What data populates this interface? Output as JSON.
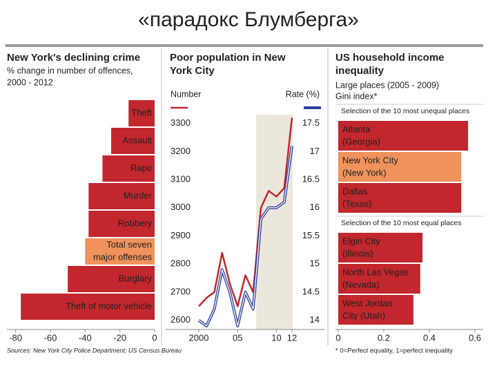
{
  "title": "«парадокс Блумберга»",
  "source": "Sources: New York City Police Department; US Census Bureau",
  "chart_data": [
    {
      "type": "hbar",
      "title": [
        "New York's declining crime"
      ],
      "subtitle": [
        "% change in number of offences,",
        "2000 - 2012"
      ],
      "categories": [
        "Theft",
        "Assault",
        "Rape",
        "Murder",
        "Robbery",
        [
          "Total seven",
          "major offenses"
        ],
        "Burglary",
        "Theft of motor vehicle"
      ],
      "values": [
        -15,
        -25,
        -30,
        -38,
        -38,
        -40,
        -50,
        -77
      ],
      "colors": [
        "#c1272d",
        "#c1272d",
        "#c1272d",
        "#c1272d",
        "#c1272d",
        "#f0925c",
        "#c1272d",
        "#c1272d"
      ],
      "xlim": [
        -85,
        0
      ],
      "xticks": [
        -80,
        -60,
        -40,
        -20,
        0
      ]
    },
    {
      "type": "line",
      "title": [
        "Poor population in New",
        "York City"
      ],
      "x": [
        2000,
        2001,
        2002,
        2003,
        2004,
        2005,
        2006,
        2007,
        2008,
        2009,
        2010,
        2011,
        2012
      ],
      "series": [
        {
          "name": "Number",
          "color": "#c1272d",
          "values": [
            2650,
            2680,
            2700,
            2840,
            2730,
            2650,
            2760,
            2700,
            3000,
            3060,
            3040,
            3070,
            3320
          ]
        },
        {
          "name": "Rate (%)",
          "color": "#2f3f9e",
          "axis": "y2",
          "values": [
            14.0,
            13.9,
            14.2,
            14.9,
            14.5,
            13.9,
            14.5,
            14.2,
            15.8,
            16.0,
            16.0,
            16.1,
            17.1
          ]
        }
      ],
      "xlim": [
        1996,
        2016
      ],
      "xticks": [
        2000,
        {
          "value": 2005,
          "label": "05"
        },
        {
          "value": 2010,
          "label": "10"
        },
        {
          "value": 2012,
          "label": "12"
        }
      ],
      "ylim": [
        2560,
        3380
      ],
      "yticks": [
        2600,
        2700,
        2800,
        2900,
        3000,
        3100,
        3200,
        3300
      ],
      "y2lim": [
        13.8,
        17.9
      ],
      "y2ticks": [
        14.0,
        14.5,
        15.0,
        15.5,
        16.0,
        16.5,
        17.0,
        17.5
      ]
    },
    {
      "type": "grouped-hbar",
      "title": [
        "US household income",
        "inequality"
      ],
      "subtitle": [
        "Large places (2005 - 2009)",
        "Gini index*"
      ],
      "groups": [
        {
          "name": "Selection of the 10 most unequal places",
          "categories": [
            [
              "Atlanta",
              "(Georgia)"
            ],
            [
              "New York City",
              "(New York)"
            ],
            [
              "Dallas",
              "(Texas)"
            ]
          ],
          "values": [
            0.57,
            0.54,
            0.54
          ],
          "colors": [
            "#c1272d",
            "#f0925c",
            "#c1272d"
          ]
        },
        {
          "name": "Selection of the 10 most equal places",
          "categories": [
            [
              "Elgin City",
              "(Illinois)"
            ],
            [
              "North Las Vegas",
              "(Nevada)"
            ],
            [
              "West Jordan",
              "City (Utah)"
            ]
          ],
          "values": [
            0.37,
            0.36,
            0.33
          ],
          "colors": [
            "#c1272d",
            "#c1272d",
            "#c1272d"
          ]
        }
      ],
      "xlim": [
        0,
        0.6
      ],
      "xticks": [
        0,
        0.2,
        0.4,
        0.6
      ],
      "note": "* 0=Perfect equality, 1=perfect inequality"
    }
  ]
}
